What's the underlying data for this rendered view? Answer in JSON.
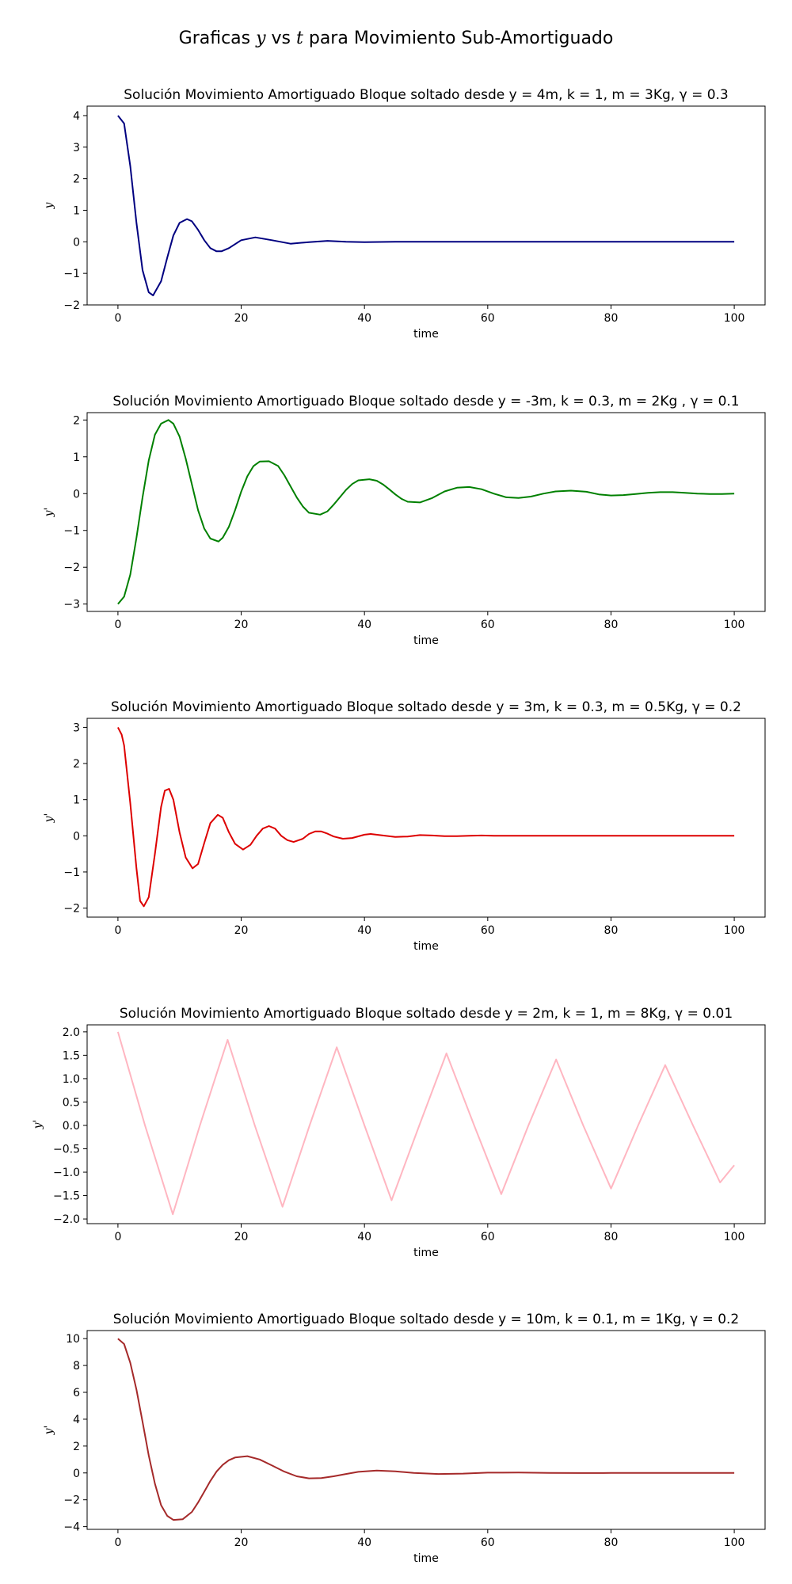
{
  "figure": {
    "suptitle_pre": "Graficas ",
    "suptitle_y": "y",
    "suptitle_mid": " vs  ",
    "suptitle_t": "t",
    "suptitle_post": " para Movimiento Sub-Amortiguado"
  },
  "chart_data": [
    {
      "type": "line",
      "title": "Solución Movimiento Amortiguado Bloque soltado desde y = 4m, k = 1, m = 3Kg, γ = 0.3",
      "xlabel": "time",
      "ylabel": "y",
      "xlim": [
        -5,
        105
      ],
      "ylim": [
        -2,
        4.3
      ],
      "xticks": [
        0,
        20,
        40,
        60,
        80,
        100
      ],
      "yticks": [
        -2,
        -1,
        0,
        1,
        2,
        3,
        4
      ],
      "ytick_labels": [
        "−2",
        "−1",
        "0",
        "1",
        "2",
        "3",
        "4"
      ],
      "grid": false,
      "color": "#000080",
      "series": [
        {
          "x": [
            0,
            1,
            2,
            3,
            4,
            5,
            5.7,
            7,
            8,
            9,
            10,
            11.2,
            12,
            13,
            14,
            15,
            16,
            16.8,
            18,
            20,
            22.3,
            25,
            28,
            31,
            34,
            37,
            40,
            45,
            50,
            60,
            70,
            80,
            90,
            100
          ],
          "values": [
            4.0,
            3.75,
            2.4,
            0.6,
            -0.9,
            -1.6,
            -1.7,
            -1.25,
            -0.5,
            0.2,
            0.6,
            0.72,
            0.65,
            0.38,
            0.05,
            -0.2,
            -0.3,
            -0.3,
            -0.2,
            0.05,
            0.14,
            0.05,
            -0.06,
            -0.01,
            0.03,
            0.0,
            -0.01,
            0.0,
            0.0,
            0.0,
            0.0,
            0.0,
            0.0,
            0.0
          ]
        }
      ]
    },
    {
      "type": "line",
      "title": "Solución Movimiento Amortiguado Bloque soltado desde y = -3m, k = 0.3, m = 2Kg , γ = 0.1",
      "xlabel": "time",
      "ylabel": "y'",
      "xlim": [
        -5,
        105
      ],
      "ylim": [
        -3.2,
        2.2
      ],
      "xticks": [
        0,
        20,
        40,
        60,
        80,
        100
      ],
      "yticks": [
        -3,
        -2,
        -1,
        0,
        1,
        2
      ],
      "ytick_labels": [
        "−3",
        "−2",
        "−1",
        "0",
        "1",
        "2"
      ],
      "grid": false,
      "color": "#008000",
      "series": [
        {
          "x": [
            0,
            1,
            2,
            3,
            4,
            5,
            6,
            7,
            8.2,
            9,
            10,
            11,
            12,
            13,
            14,
            15,
            16.3,
            17,
            18,
            19,
            20,
            21,
            22,
            23,
            24.5,
            26,
            27,
            28,
            29,
            30,
            31,
            32.8,
            34,
            35,
            36,
            37,
            38,
            39,
            40.8,
            42,
            43,
            44,
            45,
            46,
            47,
            49,
            51,
            53,
            55,
            57,
            59,
            61,
            63,
            65,
            67,
            69,
            71,
            73.5,
            76,
            78,
            80,
            82,
            84,
            86,
            88,
            90,
            92,
            94,
            96,
            98,
            100
          ],
          "values": [
            -3.0,
            -2.8,
            -2.2,
            -1.2,
            -0.1,
            0.9,
            1.6,
            1.9,
            2.0,
            1.9,
            1.55,
            0.95,
            0.25,
            -0.45,
            -0.95,
            -1.22,
            -1.3,
            -1.2,
            -0.9,
            -0.45,
            0.05,
            0.47,
            0.75,
            0.87,
            0.88,
            0.75,
            0.5,
            0.2,
            -0.1,
            -0.35,
            -0.52,
            -0.57,
            -0.48,
            -0.3,
            -0.1,
            0.1,
            0.26,
            0.36,
            0.39,
            0.35,
            0.25,
            0.12,
            -0.02,
            -0.14,
            -0.22,
            -0.24,
            -0.12,
            0.06,
            0.16,
            0.18,
            0.12,
            0.0,
            -0.1,
            -0.12,
            -0.08,
            0.0,
            0.06,
            0.08,
            0.05,
            -0.02,
            -0.05,
            -0.04,
            -0.01,
            0.02,
            0.04,
            0.04,
            0.02,
            0.0,
            -0.01,
            -0.01,
            0.0
          ]
        }
      ]
    },
    {
      "type": "line",
      "title": "Solución Movimiento Amortiguado Bloque soltado desde y = 3m, k = 0.3, m = 0.5Kg, γ = 0.2",
      "xlabel": "time",
      "ylabel": "y'",
      "xlim": [
        -5,
        105
      ],
      "ylim": [
        -2.25,
        3.25
      ],
      "xticks": [
        0,
        20,
        40,
        60,
        80,
        100
      ],
      "yticks": [
        -2,
        -1,
        0,
        1,
        2,
        3
      ],
      "ytick_labels": [
        "−2",
        "−1",
        "0",
        "1",
        "2",
        "3"
      ],
      "grid": false,
      "color": "#dd0000",
      "series": [
        {
          "x": [
            0,
            0.6,
            1,
            2,
            3,
            3.6,
            4.2,
            5,
            6,
            7,
            7.6,
            8.3,
            9,
            10,
            11,
            12.1,
            13,
            14,
            15,
            16.2,
            17,
            18,
            19,
            20.3,
            21.5,
            22.5,
            23.5,
            24.5,
            25.5,
            26.5,
            27.5,
            28.5,
            30,
            31,
            32,
            33,
            34,
            35,
            36.5,
            38,
            40,
            41,
            43,
            45,
            47,
            49,
            51,
            53,
            55,
            57,
            59,
            61,
            63,
            65,
            70,
            80,
            90,
            100
          ],
          "values": [
            3.0,
            2.8,
            2.5,
            0.9,
            -0.9,
            -1.8,
            -1.95,
            -1.7,
            -0.5,
            0.8,
            1.25,
            1.3,
            1.0,
            0.1,
            -0.6,
            -0.9,
            -0.78,
            -0.2,
            0.35,
            0.58,
            0.5,
            0.1,
            -0.22,
            -0.38,
            -0.25,
            0.0,
            0.2,
            0.27,
            0.2,
            0.0,
            -0.12,
            -0.17,
            -0.08,
            0.05,
            0.12,
            0.12,
            0.06,
            -0.02,
            -0.08,
            -0.06,
            0.03,
            0.05,
            0.01,
            -0.03,
            -0.02,
            0.02,
            0.01,
            -0.01,
            -0.01,
            0.0,
            0.01,
            0.0,
            0.0,
            0.0,
            0.0,
            0.0,
            0.0,
            0.0
          ]
        }
      ]
    },
    {
      "type": "line",
      "title": "Solución Movimiento Amortiguado Bloque soltado desde y = 2m, k = 1, m = 8Kg, γ = 0.01",
      "xlabel": "time",
      "ylabel": "y'",
      "xlim": [
        -5,
        105
      ],
      "ylim": [
        -2.1,
        2.15
      ],
      "xticks": [
        0,
        20,
        40,
        60,
        80,
        100
      ],
      "yticks": [
        -2.0,
        -1.5,
        -1.0,
        -0.5,
        0.0,
        0.5,
        1.0,
        1.5,
        2.0
      ],
      "ytick_labels": [
        "−2.0",
        "−1.5",
        "−1.0",
        "−0.5",
        "0.0",
        "0.5",
        "1.0",
        "1.5",
        "2.0"
      ],
      "grid": false,
      "color": "#ffb6c1",
      "series": [
        {
          "x": [
            0,
            4.4,
            8.9,
            13.3,
            17.8,
            22.2,
            26.7,
            31.1,
            35.5,
            40,
            44.4,
            48.9,
            53.3,
            57.8,
            62.2,
            66.6,
            71.1,
            75.5,
            80,
            84.4,
            88.8,
            93.3,
            97.7,
            100
          ],
          "values": [
            2.0,
            0.0,
            -1.9,
            0.0,
            1.83,
            0.0,
            -1.74,
            0.0,
            1.67,
            0.0,
            -1.6,
            0.0,
            1.54,
            0.0,
            -1.47,
            0.0,
            1.41,
            0.0,
            -1.35,
            0.0,
            1.29,
            0.0,
            -1.22,
            -0.85
          ]
        }
      ]
    },
    {
      "type": "line",
      "title": "Solución Movimiento Amortiguado Bloque soltado desde y = 10m, k = 0.1, m = 1Kg, γ = 0.2",
      "xlabel": "time",
      "ylabel": "y'",
      "xlim": [
        -5,
        105
      ],
      "ylim": [
        -4.2,
        10.6
      ],
      "xticks": [
        0,
        20,
        40,
        60,
        80,
        100
      ],
      "yticks": [
        -4,
        -2,
        0,
        2,
        4,
        6,
        8,
        10
      ],
      "ytick_labels": [
        "−4",
        "−2",
        "0",
        "2",
        "4",
        "6",
        "8",
        "10"
      ],
      "grid": false,
      "color": "#a52a2a",
      "series": [
        {
          "x": [
            0,
            1,
            2,
            3,
            4,
            5,
            6,
            7,
            8,
            9,
            10.5,
            12,
            13,
            14,
            15,
            16,
            17,
            18,
            19,
            21,
            23,
            25,
            27,
            29,
            31,
            33,
            35,
            37,
            39,
            42,
            45,
            48,
            52,
            56,
            60,
            65,
            70,
            75,
            80,
            90,
            100
          ],
          "values": [
            10.0,
            9.6,
            8.2,
            6.2,
            3.8,
            1.3,
            -0.8,
            -2.4,
            -3.2,
            -3.5,
            -3.45,
            -2.9,
            -2.2,
            -1.4,
            -0.6,
            0.1,
            0.6,
            0.95,
            1.15,
            1.25,
            1.0,
            0.55,
            0.1,
            -0.25,
            -0.4,
            -0.38,
            -0.25,
            -0.08,
            0.08,
            0.18,
            0.12,
            0.0,
            -0.08,
            -0.05,
            0.02,
            0.03,
            0.0,
            -0.01,
            0.0,
            0.0,
            0.0
          ]
        }
      ]
    }
  ]
}
